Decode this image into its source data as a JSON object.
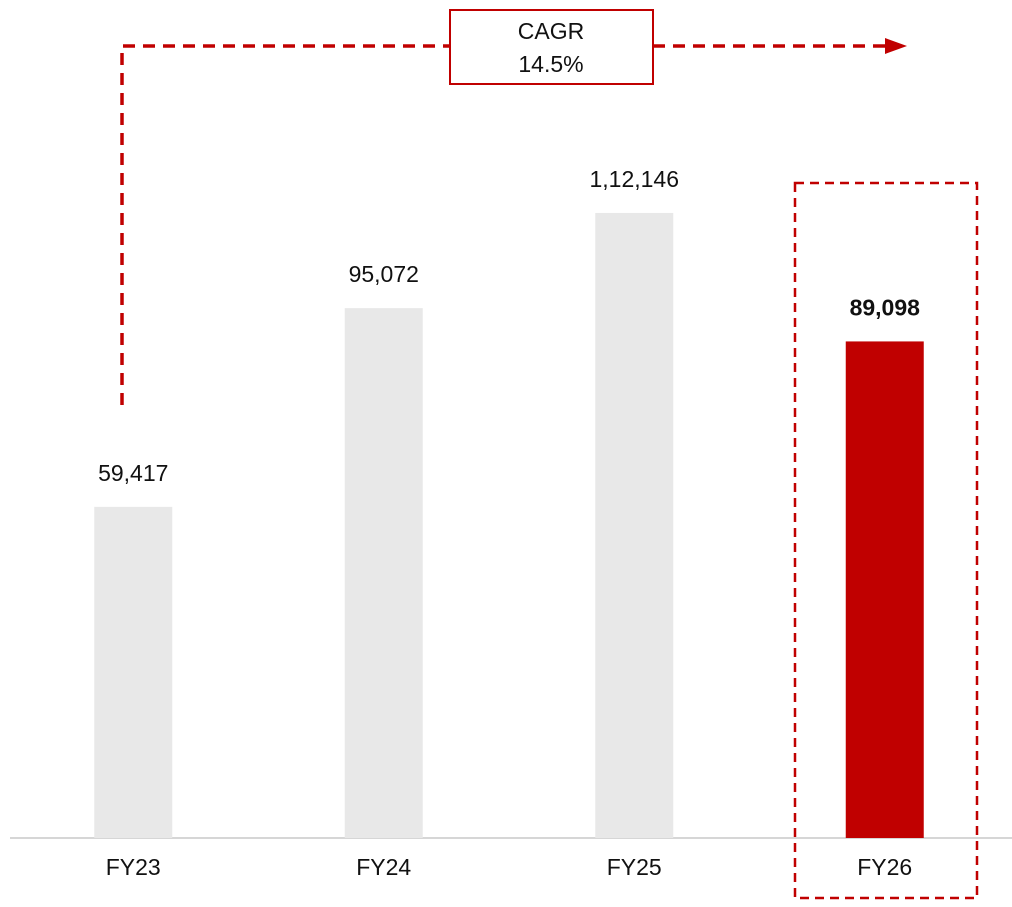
{
  "chart_data": {
    "type": "bar",
    "categories": [
      "FY23",
      "FY24",
      "FY25",
      "FY26"
    ],
    "values": [
      59417,
      95072,
      112146,
      89098
    ],
    "value_labels": [
      "59,417",
      "95,072",
      "1,12,146",
      "89,098"
    ],
    "value_label_bold": [
      false,
      false,
      false,
      true
    ],
    "colors": [
      "#e8e8e8",
      "#e8e8e8",
      "#e8e8e8",
      "#c00000"
    ],
    "ylim": [
      0,
      150000
    ],
    "annotation": [
      "CAGR",
      "14.5%"
    ]
  }
}
